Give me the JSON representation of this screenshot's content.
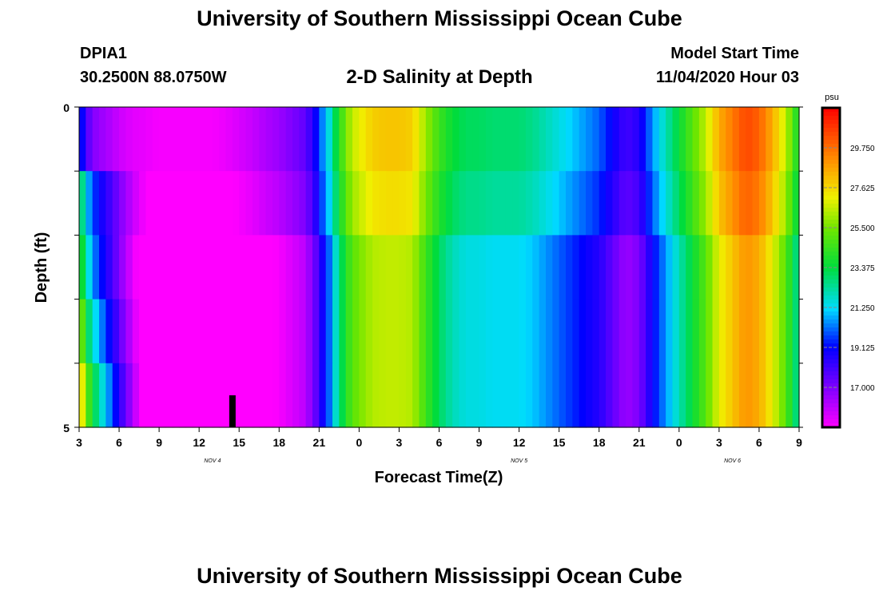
{
  "header": {
    "title": "University of Southern Mississippi Ocean Cube",
    "station_id": "DPIA1",
    "station_coords": "30.2500N 88.0750W",
    "chart_title": "2-D Salinity at Depth",
    "model_start_label": "Model Start Time",
    "model_start_value": "11/04/2020 Hour 03"
  },
  "footer": {
    "title": "University of Southern Mississippi Ocean Cube"
  },
  "chart_data": {
    "type": "heatmap",
    "title": "2-D Salinity at Depth",
    "xlabel": "Forecast Time(Z)",
    "ylabel": "Depth (ft)",
    "ylim": [
      0,
      5
    ],
    "y_tick_labels": [
      "0",
      "5"
    ],
    "x_tick_labels": [
      "3",
      "6",
      "9",
      "12",
      "15",
      "18",
      "21",
      "0",
      "3",
      "6",
      "9",
      "12",
      "15",
      "18",
      "21",
      "0",
      "3",
      "6",
      "9"
    ],
    "date_labels": [
      {
        "text": "NOV  4",
        "at_hours": 10
      },
      {
        "text": "NOV  5",
        "at_hours": 33
      },
      {
        "text": "NOV  6",
        "at_hours": 49
      }
    ],
    "time_range_hours": [
      0,
      54
    ],
    "depth_rows": 5,
    "colorbar": {
      "unit": "psu",
      "min": 14.875,
      "max": 31.875,
      "tick_labels": [
        "29.750",
        "27.625",
        "25.500",
        "23.375",
        "21.250",
        "19.125",
        "17.000"
      ]
    },
    "marker": {
      "hour": 11.5,
      "depth_from": 4.5,
      "depth_to": 5
    },
    "salinity_profile_time_hours": [
      0,
      0.5,
      1,
      1.5,
      2,
      2.5,
      3,
      4,
      5,
      6,
      7,
      8,
      9,
      10,
      11,
      12,
      13,
      14,
      15,
      16,
      17,
      17.5,
      18,
      18.3,
      18.6,
      19,
      19.5,
      20,
      20.5,
      21,
      22,
      23,
      24,
      25,
      26,
      27,
      28,
      29,
      30,
      31,
      32,
      33,
      34,
      35,
      36,
      37,
      38,
      39,
      40,
      41,
      42,
      43,
      44,
      45,
      46,
      47,
      48,
      49,
      50,
      51,
      52,
      53,
      54
    ],
    "salinity_profile_psu": [
      19.5,
      17.5,
      16.5,
      16.2,
      16.0,
      15.8,
      15.5,
      15.2,
      15.2,
      15.0,
      15.0,
      15.0,
      15.0,
      15.0,
      15.2,
      15.5,
      15.8,
      16.2,
      16.5,
      17.0,
      17.5,
      18.5,
      19.5,
      20.5,
      21.0,
      22.5,
      24.0,
      25.5,
      26.5,
      27.0,
      27.8,
      28.0,
      28.0,
      27.8,
      26.0,
      24.5,
      23.5,
      23.0,
      23.0,
      22.8,
      22.8,
      22.8,
      22.5,
      22.0,
      21.5,
      21.0,
      20.5,
      20.0,
      19.0,
      18.0,
      18.5,
      20.5,
      22.0,
      23.5,
      25.0,
      26.5,
      28.5,
      29.5,
      30.5,
      30.0,
      28.5,
      26.5,
      23.5
    ],
    "depth_adjust_first_hours_psu": [
      [
        0,
        -0.5,
        -1.5,
        -1.5,
        -1.5
      ],
      [
        2.5,
        4.5,
        6.5,
        8.0,
        10.0
      ]
    ]
  }
}
